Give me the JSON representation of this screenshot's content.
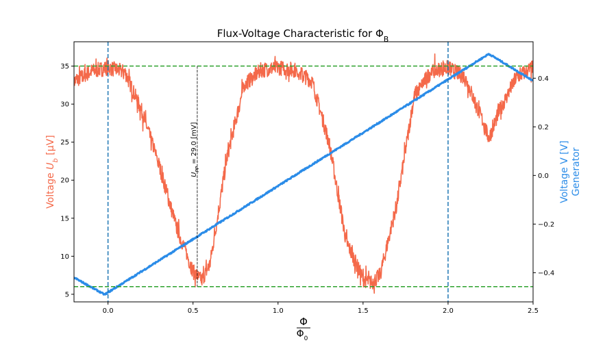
{
  "chart_data": {
    "type": "line",
    "title_main": "Flux-Voltage Characteristic for Φ",
    "title_sub": "B",
    "xlabel_num": "Φ",
    "xlabel_den_main": "Φ",
    "xlabel_den_sub": "0",
    "ylabel_left": {
      "prefix": "Voltage ",
      "sym": "U",
      "sub": "b",
      "unit": " [μV]",
      "color": "#f4694a"
    },
    "ylabel_right": {
      "line1": "Voltage V [V]",
      "line2": "Generator",
      "color": "#2b8ce8"
    },
    "xlim": [
      -0.2,
      2.5
    ],
    "ylim_left": [
      4,
      38.2
    ],
    "ylim_right": [
      -0.52,
      0.55
    ],
    "x_ticks": [
      {
        "v": 0.0,
        "label": "0.0"
      },
      {
        "v": 0.5,
        "label": "0.5"
      },
      {
        "v": 1.0,
        "label": "1.0"
      },
      {
        "v": 1.5,
        "label": "1.5"
      },
      {
        "v": 2.0,
        "label": "2.0"
      },
      {
        "v": 2.5,
        "label": "2.5"
      }
    ],
    "y_left_ticks": [
      {
        "v": 5,
        "label": "5"
      },
      {
        "v": 10,
        "label": "10"
      },
      {
        "v": 15,
        "label": "15"
      },
      {
        "v": 20,
        "label": "20"
      },
      {
        "v": 25,
        "label": "25"
      },
      {
        "v": 30,
        "label": "30"
      },
      {
        "v": 35,
        "label": "35"
      }
    ],
    "y_right_ticks": [
      {
        "v": -0.4,
        "label": "−0.4"
      },
      {
        "v": -0.2,
        "label": "−0.2"
      },
      {
        "v": 0.0,
        "label": "0.0"
      },
      {
        "v": 0.2,
        "label": "0.2"
      },
      {
        "v": 0.4,
        "label": "0.4"
      }
    ],
    "hlines_left": [
      {
        "y": 35,
        "color": "#2ca02c",
        "style": "dashed"
      },
      {
        "y": 6,
        "color": "#2ca02c",
        "style": "dashed"
      }
    ],
    "vlines": [
      {
        "x": 0.0,
        "color": "#1f77b4",
        "style": "dashed"
      },
      {
        "x": 2.0,
        "color": "#1f77b4",
        "style": "dashed"
      }
    ],
    "upp_marker": {
      "x": 0.525,
      "y_from": 35,
      "y_to": 6
    },
    "annotation": {
      "sym": "U",
      "sub": "PP",
      "text": " = 29.0 [mV]",
      "x": 0.525,
      "y": 26
    },
    "series": [
      {
        "axis": "left",
        "color": "#f4694a",
        "model": "squid",
        "x": [
          -0.2,
          -0.1,
          0.0,
          0.1,
          0.2,
          0.3,
          0.4,
          0.5,
          0.55,
          0.6,
          0.7,
          0.8,
          0.9,
          1.0,
          1.1,
          1.2,
          1.3,
          1.4,
          1.5,
          1.55,
          1.6,
          1.7,
          1.8,
          1.9,
          2.0,
          2.1,
          2.2,
          2.24,
          2.3,
          2.4,
          2.5
        ],
        "y": [
          33,
          34.3,
          34.8,
          34.2,
          29,
          22,
          14,
          8,
          6.8,
          9,
          23,
          32.5,
          34.5,
          34.8,
          34.5,
          33,
          25,
          12,
          7,
          6.5,
          7.5,
          17,
          31,
          34.3,
          34.8,
          33.5,
          28,
          25.5,
          29,
          33.5,
          34.8
        ],
        "noise": 1.0
      },
      {
        "axis": "right",
        "color": "#2b8ce8",
        "x": [
          -0.2,
          -0.02,
          2.24,
          2.5
        ],
        "y": [
          -0.42,
          -0.49,
          0.5,
          0.39
        ]
      }
    ]
  }
}
